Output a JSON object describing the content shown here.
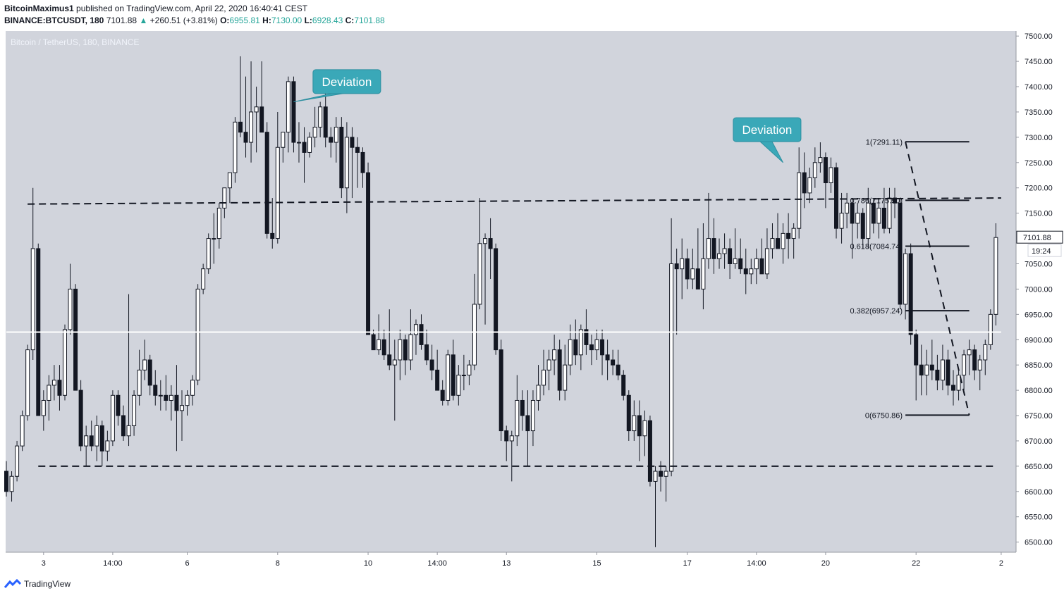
{
  "header": {
    "publisher": "BitcoinMaximus1",
    "published_text": "published on TradingView.com, April 22, 2020 16:40:41 CEST",
    "symbol": "BINANCE:BTCUSDT, 180",
    "last": "7101.88",
    "change_arrow": "▲",
    "change": "+260.51 (+3.81%)",
    "o_label": "O:",
    "o": "6955.81",
    "h_label": "H:",
    "h": "7130.00",
    "l_label": "L:",
    "l": "6928.43",
    "c_label": "C:",
    "c": "7101.88"
  },
  "footer": {
    "logo_text": "TradingView"
  },
  "colors": {
    "plot_bg": "#d1d4dc",
    "up_color": "#ffffff",
    "down_color": "#131722",
    "callout": "#3aa8b8",
    "up_text": "#26a69a"
  },
  "chart_data": {
    "type": "candlestick",
    "title": "Bitcoin / TetherUS, 180, BINANCE",
    "ylim": [
      6480,
      7510
    ],
    "y_ticks": [
      6500,
      6550,
      6600,
      6650,
      6700,
      6750,
      6800,
      6850,
      6900,
      6950,
      7000,
      7050,
      7100,
      7150,
      7200,
      7250,
      7300,
      7350,
      7400,
      7450,
      7500
    ],
    "y_tick_labels": [
      "6500.00",
      "6550.00",
      "6600.00",
      "6650.00",
      "6700.00",
      "6750.00",
      "6800.00",
      "6850.00",
      "6900.00",
      "6950.00",
      "7000.00",
      "7050.00",
      "7100.00",
      "7150.00",
      "7200.00",
      "7250.00",
      "7300.00",
      "7350.00",
      "7400.00",
      "7450.00",
      "7500.00"
    ],
    "x_ticks": [
      {
        "label": "3",
        "bar": 7
      },
      {
        "label": "14:00",
        "bar": 20
      },
      {
        "label": "6",
        "bar": 34
      },
      {
        "label": "8",
        "bar": 51
      },
      {
        "label": "10",
        "bar": 68
      },
      {
        "label": "14:00",
        "bar": 81
      },
      {
        "label": "13",
        "bar": 94
      },
      {
        "label": "15",
        "bar": 111
      },
      {
        "label": "17",
        "bar": 128
      },
      {
        "label": "14:00",
        "bar": 141
      },
      {
        "label": "20",
        "bar": 154
      },
      {
        "label": "22",
        "bar": 171
      },
      {
        "label": "2",
        "bar": 187
      }
    ],
    "price_label": "7101.88",
    "countdown": "19:24",
    "candles": [
      [
        6640,
        6660,
        6590,
        6600
      ],
      [
        6600,
        6640,
        6580,
        6630
      ],
      [
        6630,
        6700,
        6620,
        6690
      ],
      [
        6690,
        6760,
        6680,
        6750
      ],
      [
        6750,
        6890,
        6740,
        6880
      ],
      [
        6880,
        7200,
        6860,
        7080
      ],
      [
        7080,
        7090,
        6750,
        6750
      ],
      [
        6750,
        6800,
        6720,
        6780
      ],
      [
        6780,
        6830,
        6740,
        6810
      ],
      [
        6810,
        6850,
        6780,
        6820
      ],
      [
        6820,
        6850,
        6760,
        6790
      ],
      [
        6790,
        6930,
        6780,
        6920
      ],
      [
        6920,
        7050,
        6910,
        7000
      ],
      [
        7000,
        7010,
        6800,
        6800
      ],
      [
        6800,
        6820,
        6680,
        6690
      ],
      [
        6690,
        6730,
        6650,
        6710
      ],
      [
        6710,
        6740,
        6680,
        6690
      ],
      [
        6690,
        6750,
        6660,
        6730
      ],
      [
        6730,
        6740,
        6650,
        6680
      ],
      [
        6680,
        6720,
        6660,
        6700
      ],
      [
        6700,
        6800,
        6690,
        6790
      ],
      [
        6790,
        6800,
        6730,
        6750
      ],
      [
        6750,
        6770,
        6700,
        6710
      ],
      [
        6710,
        6990,
        6690,
        6730
      ],
      [
        6730,
        6800,
        6710,
        6790
      ],
      [
        6790,
        6880,
        6770,
        6840
      ],
      [
        6840,
        6900,
        6820,
        6860
      ],
      [
        6860,
        6870,
        6790,
        6810
      ],
      [
        6810,
        6840,
        6770,
        6790
      ],
      [
        6790,
        6820,
        6760,
        6790
      ],
      [
        6790,
        6830,
        6760,
        6780
      ],
      [
        6780,
        6810,
        6740,
        6790
      ],
      [
        6790,
        6850,
        6680,
        6760
      ],
      [
        6760,
        6800,
        6700,
        6770
      ],
      [
        6770,
        6800,
        6750,
        6790
      ],
      [
        6790,
        6830,
        6770,
        6820
      ],
      [
        6820,
        7010,
        6810,
        7000
      ],
      [
        7000,
        7050,
        6990,
        7040
      ],
      [
        7040,
        7110,
        7030,
        7100
      ],
      [
        7100,
        7150,
        7050,
        7100
      ],
      [
        7100,
        7170,
        7080,
        7160
      ],
      [
        7160,
        7200,
        7140,
        7200
      ],
      [
        7200,
        7230,
        7170,
        7230
      ],
      [
        7230,
        7340,
        7210,
        7330
      ],
      [
        7330,
        7460,
        7300,
        7310
      ],
      [
        7310,
        7420,
        7260,
        7290
      ],
      [
        7290,
        7450,
        7250,
        7350
      ],
      [
        7350,
        7400,
        7270,
        7360
      ],
      [
        7360,
        7450,
        7320,
        7310
      ],
      [
        7310,
        7330,
        7100,
        7110
      ],
      [
        7110,
        7180,
        7080,
        7100
      ],
      [
        7100,
        7350,
        7090,
        7280
      ],
      [
        7280,
        7310,
        7250,
        7310
      ],
      [
        7310,
        7420,
        7270,
        7410
      ],
      [
        7410,
        7420,
        7270,
        7290
      ],
      [
        7290,
        7330,
        7250,
        7290
      ],
      [
        7290,
        7320,
        7210,
        7270
      ],
      [
        7270,
        7310,
        7260,
        7300
      ],
      [
        7300,
        7360,
        7280,
        7320
      ],
      [
        7320,
        7370,
        7300,
        7360
      ],
      [
        7360,
        7390,
        7280,
        7300
      ],
      [
        7300,
        7320,
        7260,
        7290
      ],
      [
        7290,
        7340,
        7250,
        7320
      ],
      [
        7320,
        7340,
        7180,
        7200
      ],
      [
        7200,
        7330,
        7150,
        7300
      ],
      [
        7300,
        7320,
        7180,
        7280
      ],
      [
        7280,
        7300,
        7200,
        7270
      ],
      [
        7270,
        7280,
        7200,
        7230
      ],
      [
        7230,
        7250,
        6910,
        6910
      ],
      [
        6910,
        6920,
        6880,
        6880
      ],
      [
        6880,
        6950,
        6870,
        6900
      ],
      [
        6900,
        6920,
        6860,
        6870
      ],
      [
        6870,
        6960,
        6840,
        6850
      ],
      [
        6850,
        6900,
        6740,
        6860
      ],
      [
        6860,
        6920,
        6820,
        6900
      ],
      [
        6900,
        6910,
        6830,
        6860
      ],
      [
        6860,
        6960,
        6840,
        6910
      ],
      [
        6910,
        6940,
        6870,
        6930
      ],
      [
        6930,
        6950,
        6880,
        6890
      ],
      [
        6890,
        6920,
        6850,
        6860
      ],
      [
        6860,
        6890,
        6820,
        6840
      ],
      [
        6840,
        6880,
        6800,
        6800
      ],
      [
        6800,
        6820,
        6770,
        6780
      ],
      [
        6780,
        6880,
        6770,
        6870
      ],
      [
        6870,
        6900,
        6780,
        6790
      ],
      [
        6790,
        6850,
        6770,
        6830
      ],
      [
        6830,
        6870,
        6800,
        6830
      ],
      [
        6830,
        6860,
        6810,
        6850
      ],
      [
        6850,
        7030,
        6840,
        6970
      ],
      [
        6970,
        7180,
        6960,
        7090
      ],
      [
        7090,
        7110,
        6930,
        7100
      ],
      [
        7100,
        7140,
        7020,
        7080
      ],
      [
        7080,
        7090,
        6870,
        6880
      ],
      [
        6880,
        6900,
        6700,
        6720
      ],
      [
        6720,
        6730,
        6660,
        6700
      ],
      [
        6700,
        6720,
        6620,
        6710
      ],
      [
        6710,
        6830,
        6690,
        6780
      ],
      [
        6780,
        6800,
        6720,
        6750
      ],
      [
        6750,
        6800,
        6650,
        6720
      ],
      [
        6720,
        6800,
        6690,
        6780
      ],
      [
        6780,
        6850,
        6760,
        6810
      ],
      [
        6810,
        6880,
        6790,
        6840
      ],
      [
        6840,
        6880,
        6800,
        6860
      ],
      [
        6860,
        6910,
        6830,
        6880
      ],
      [
        6880,
        6900,
        6780,
        6800
      ],
      [
        6800,
        6890,
        6780,
        6850
      ],
      [
        6850,
        6930,
        6830,
        6900
      ],
      [
        6900,
        6940,
        6850,
        6870
      ],
      [
        6870,
        6930,
        6840,
        6920
      ],
      [
        6920,
        6960,
        6870,
        6890
      ],
      [
        6890,
        6910,
        6850,
        6880
      ],
      [
        6880,
        6920,
        6860,
        6900
      ],
      [
        6900,
        6920,
        6830,
        6870
      ],
      [
        6870,
        6900,
        6820,
        6860
      ],
      [
        6860,
        6880,
        6830,
        6850
      ],
      [
        6850,
        6880,
        6820,
        6830
      ],
      [
        6830,
        6840,
        6780,
        6790
      ],
      [
        6790,
        6800,
        6700,
        6720
      ],
      [
        6720,
        6780,
        6700,
        6750
      ],
      [
        6750,
        6780,
        6660,
        6710
      ],
      [
        6710,
        6760,
        6670,
        6740
      ],
      [
        6740,
        6750,
        6610,
        6620
      ],
      [
        6620,
        6650,
        6490,
        6640
      ],
      [
        6640,
        6660,
        6600,
        6630
      ],
      [
        6630,
        6650,
        6580,
        6640
      ],
      [
        6640,
        7140,
        6630,
        7050
      ],
      [
        7050,
        7080,
        6910,
        7040
      ],
      [
        7040,
        7100,
        6980,
        7060
      ],
      [
        7060,
        7080,
        7000,
        7020
      ],
      [
        7020,
        7080,
        7000,
        7040
      ],
      [
        7040,
        7120,
        7000,
        7000
      ],
      [
        7000,
        7130,
        6960,
        7060
      ],
      [
        7060,
        7190,
        7040,
        7100
      ],
      [
        7100,
        7140,
        7030,
        7060
      ],
      [
        7060,
        7100,
        7040,
        7070
      ],
      [
        7070,
        7110,
        7040,
        7080
      ],
      [
        7080,
        7100,
        7020,
        7050
      ],
      [
        7050,
        7120,
        7040,
        7060
      ],
      [
        7060,
        7100,
        7030,
        7040
      ],
      [
        7040,
        7080,
        6990,
        7030
      ],
      [
        7030,
        7060,
        7010,
        7040
      ],
      [
        7040,
        7080,
        7010,
        7060
      ],
      [
        7060,
        7100,
        7030,
        7030
      ],
      [
        7030,
        7120,
        7020,
        7080
      ],
      [
        7080,
        7130,
        7060,
        7100
      ],
      [
        7100,
        7150,
        7080,
        7080
      ],
      [
        7080,
        7130,
        7050,
        7110
      ],
      [
        7110,
        7150,
        7060,
        7100
      ],
      [
        7100,
        7130,
        7060,
        7120
      ],
      [
        7120,
        7280,
        7100,
        7230
      ],
      [
        7230,
        7270,
        7160,
        7190
      ],
      [
        7190,
        7240,
        7170,
        7220
      ],
      [
        7220,
        7280,
        7200,
        7250
      ],
      [
        7250,
        7290,
        7230,
        7260
      ],
      [
        7260,
        7270,
        7160,
        7210
      ],
      [
        7210,
        7260,
        7190,
        7240
      ],
      [
        7240,
        7250,
        7100,
        7120
      ],
      [
        7120,
        7190,
        7090,
        7150
      ],
      [
        7150,
        7190,
        7120,
        7170
      ],
      [
        7170,
        7180,
        7060,
        7130
      ],
      [
        7130,
        7170,
        7100,
        7150
      ],
      [
        7150,
        7160,
        7080,
        7100
      ],
      [
        7100,
        7200,
        7080,
        7170
      ],
      [
        7170,
        7180,
        7110,
        7130
      ],
      [
        7130,
        7180,
        7100,
        7160
      ],
      [
        7160,
        7200,
        7110,
        7120
      ],
      [
        7120,
        7200,
        7110,
        7180
      ],
      [
        7180,
        7200,
        7140,
        7170
      ],
      [
        7170,
        7180,
        6960,
        6970
      ],
      [
        6970,
        7080,
        6940,
        7070
      ],
      [
        7070,
        7090,
        6890,
        6910
      ],
      [
        6910,
        6920,
        6780,
        6850
      ],
      [
        6850,
        6890,
        6790,
        6830
      ],
      [
        6830,
        6880,
        6790,
        6850
      ],
      [
        6850,
        6900,
        6820,
        6840
      ],
      [
        6840,
        6870,
        6800,
        6820
      ],
      [
        6820,
        6890,
        6800,
        6860
      ],
      [
        6860,
        6880,
        6790,
        6810
      ],
      [
        6810,
        6840,
        6770,
        6800
      ],
      [
        6800,
        6840,
        6780,
        6830
      ],
      [
        6830,
        6880,
        6800,
        6870
      ],
      [
        6870,
        6900,
        6830,
        6880
      ],
      [
        6880,
        6890,
        6820,
        6840
      ],
      [
        6840,
        6870,
        6800,
        6860
      ],
      [
        6860,
        6900,
        6830,
        6890
      ],
      [
        6890,
        6960,
        6880,
        6950
      ],
      [
        6950,
        7130,
        6928,
        7101.88
      ]
    ],
    "horizontal_lines": [
      {
        "type": "dashed",
        "price_start": 7168,
        "price_end": 7180,
        "bar_start": 4,
        "bar_end": 187
      },
      {
        "type": "dashed",
        "price_start": 6650,
        "price_end": 6650,
        "bar_start": 6,
        "bar_end": 186
      },
      {
        "type": "solid-white",
        "price_start": 6915,
        "price_end": 6915,
        "bar_start": 0,
        "bar_end": 187
      }
    ],
    "fib_levels": [
      {
        "label": "1(7291.11)",
        "price": 7291.11
      },
      {
        "label": "0.786(7175.50)",
        "price": 7175.5
      },
      {
        "label": "0.618(7084.74)",
        "price": 7084.74
      },
      {
        "label": "0.382(6957.24)",
        "price": 6957.24
      },
      {
        "label": "0(6750.86)",
        "price": 6750.86
      }
    ],
    "fib_bar_start": 169,
    "fib_bar_end": 181,
    "annotations": [
      {
        "text": "Deviation",
        "bar": 64,
        "price": 7410,
        "tail_bar": 54,
        "tail_price": 7370
      },
      {
        "text": "Deviation",
        "bar": 143,
        "price": 7315,
        "tail_bar": 146,
        "tail_price": 7250
      }
    ]
  }
}
